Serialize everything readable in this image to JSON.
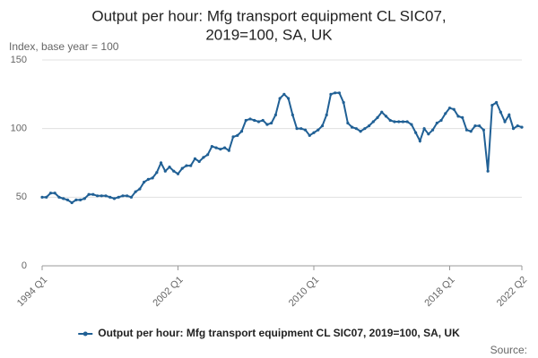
{
  "chart_data": {
    "type": "line",
    "title": [
      "Output per hour: Mfg transport equipment CL SIC07,",
      "2019=100, SA, UK"
    ],
    "y_label": "Index, base year = 100",
    "source": "Source:",
    "categories": [
      "1994 Q1",
      null,
      null,
      null,
      null,
      null,
      null,
      null,
      null,
      null,
      null,
      null,
      null,
      null,
      null,
      null,
      null,
      null,
      null,
      null,
      null,
      null,
      null,
      null,
      null,
      null,
      null,
      null,
      null,
      null,
      null,
      null,
      "2002 Q1",
      null,
      null,
      null,
      null,
      null,
      null,
      null,
      null,
      null,
      null,
      null,
      null,
      null,
      null,
      null,
      null,
      null,
      null,
      null,
      null,
      null,
      null,
      null,
      null,
      null,
      null,
      null,
      null,
      null,
      null,
      null,
      "2010 Q1",
      null,
      null,
      null,
      null,
      null,
      null,
      null,
      null,
      null,
      null,
      null,
      null,
      null,
      null,
      null,
      null,
      null,
      null,
      null,
      null,
      null,
      null,
      null,
      null,
      null,
      null,
      null,
      null,
      null,
      null,
      null,
      "2018 Q1",
      null,
      null,
      null,
      null,
      null,
      null,
      null,
      null,
      null,
      null,
      null,
      null,
      null,
      null,
      null,
      null,
      "2022 Q2"
    ],
    "series": [
      {
        "name": "Output per hour: Mfg transport equipment CL SIC07, 2019=100, SA, UK",
        "color": "#206095",
        "values": [
          50,
          50,
          53,
          53,
          50,
          49,
          48,
          46,
          48,
          48,
          49,
          52,
          52,
          51,
          51,
          51,
          50,
          49,
          50,
          51,
          51,
          50,
          54,
          56,
          61,
          63,
          64,
          68,
          75,
          69,
          72,
          69,
          67,
          71,
          73,
          73,
          78,
          76,
          79,
          81,
          87,
          86,
          85,
          86,
          84,
          94,
          95,
          98,
          106,
          107,
          106,
          105,
          106,
          103,
          104,
          110,
          122,
          125,
          122,
          110,
          100,
          100,
          99,
          95,
          97,
          99,
          102,
          110,
          125,
          126,
          126,
          119,
          104,
          101,
          100,
          98,
          100,
          102,
          105,
          108,
          112,
          109,
          106,
          105,
          105,
          105,
          105,
          103,
          97,
          91,
          100,
          96,
          99,
          104,
          106,
          111,
          115,
          114,
          109,
          108,
          99,
          98,
          102,
          102,
          99,
          69,
          117,
          119,
          112,
          105,
          110,
          100,
          102,
          101
        ]
      }
    ],
    "ylim": [
      0,
      150
    ],
    "yticks": [
      0,
      50,
      100,
      150
    ],
    "grid": true
  }
}
